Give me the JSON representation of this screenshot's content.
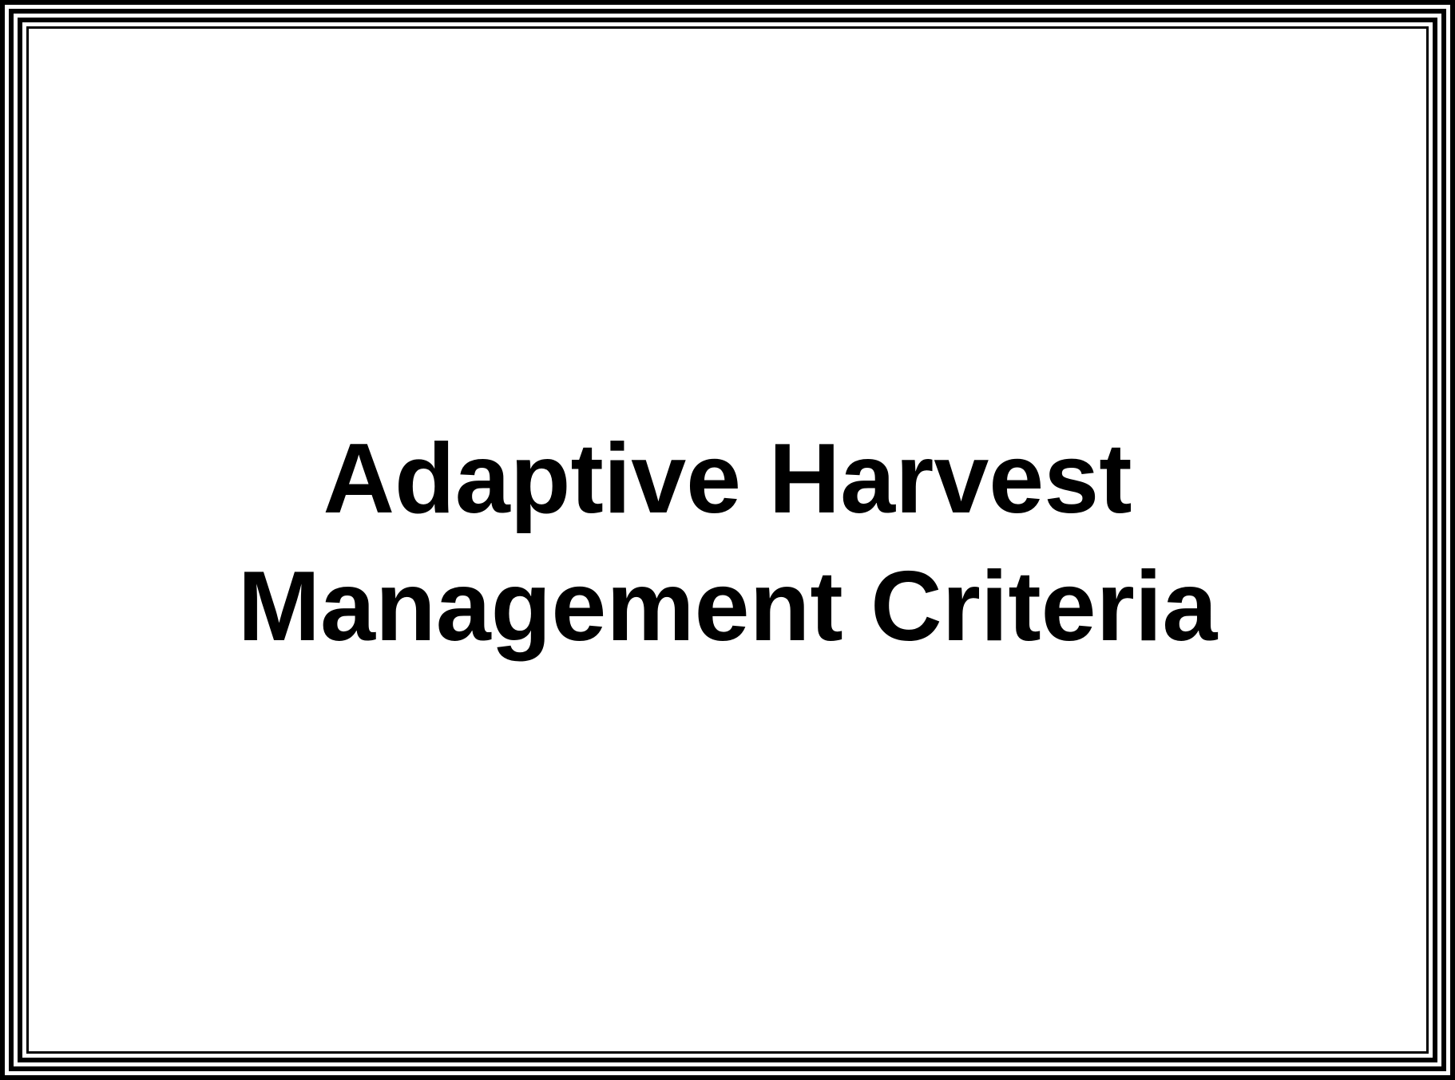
{
  "slide": {
    "title_line_1": "Adaptive Harvest",
    "title_line_2": "Management Criteria"
  },
  "colors": {
    "background": "#ffffff",
    "frame": "#000000",
    "text": "#000000"
  }
}
